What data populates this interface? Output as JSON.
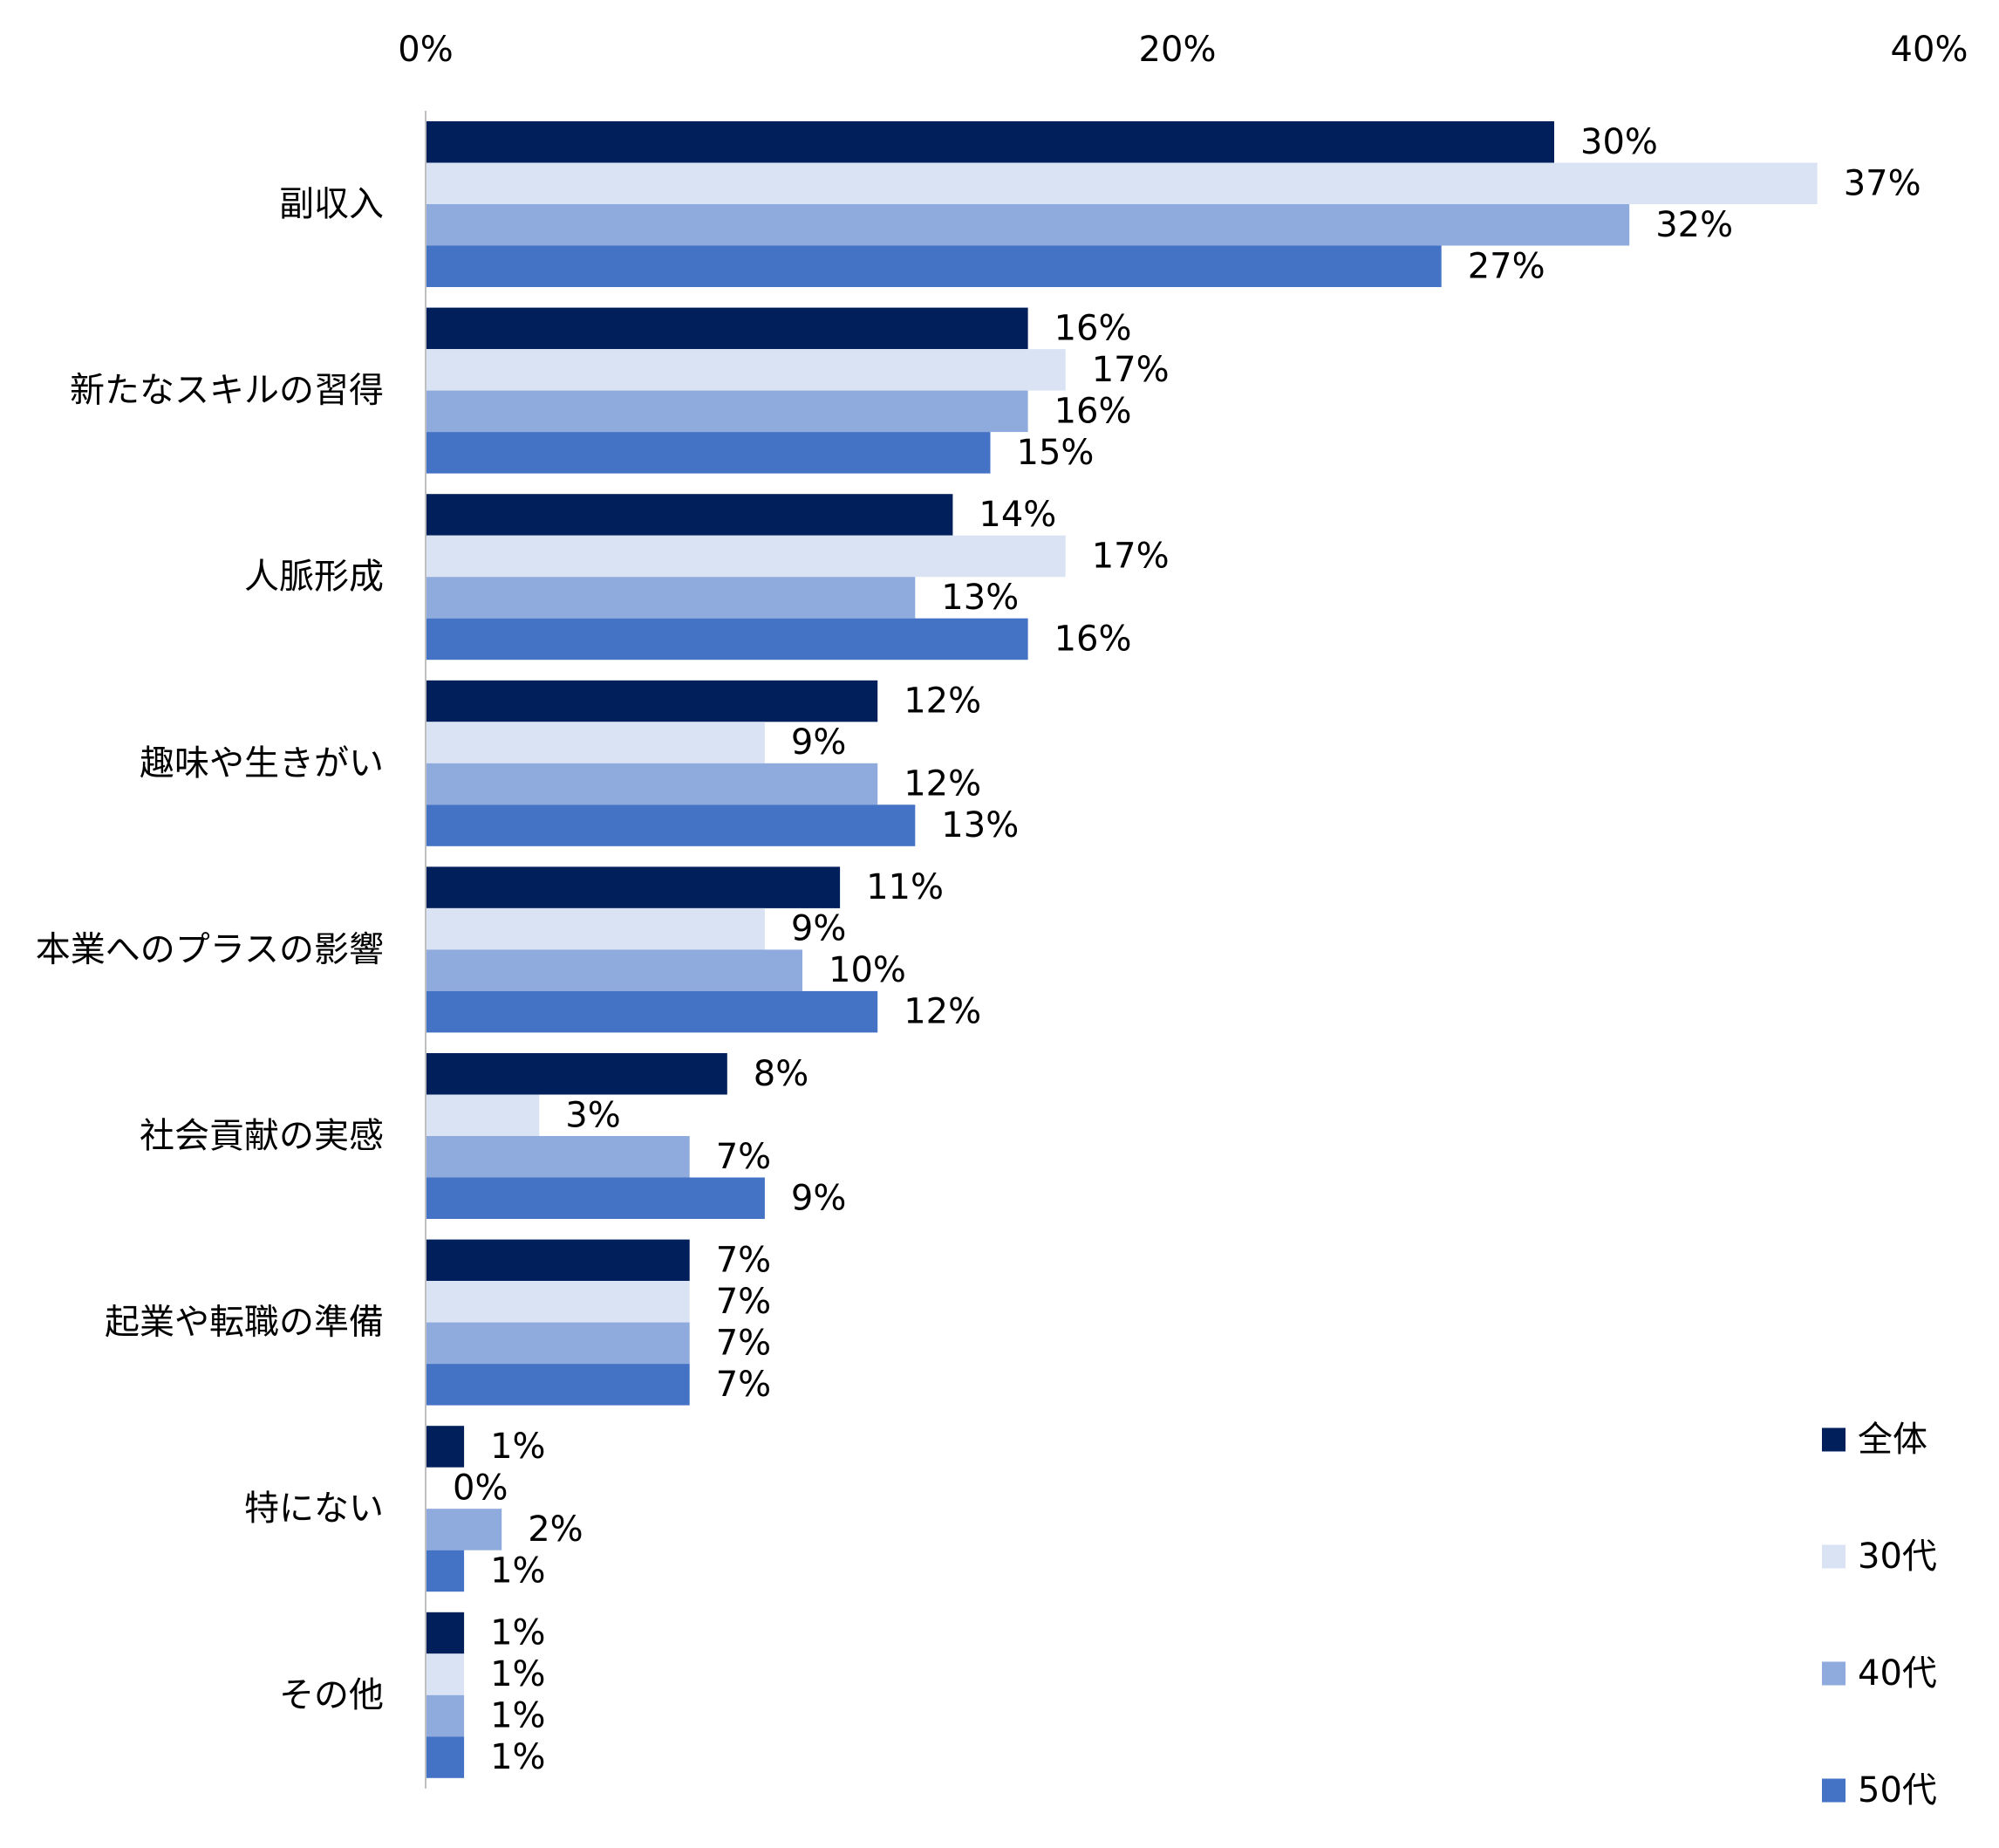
{
  "chart_data": {
    "type": "bar",
    "orientation": "horizontal",
    "categories": [
      "副収入",
      "新たなスキルの習得",
      "人脈形成",
      "趣味や生きがい",
      "本業へのプラスの影響",
      "社会貢献の実感",
      "起業や転職の準備",
      "特にない",
      "その他"
    ],
    "series": [
      {
        "name": "全体",
        "color": "#001f5b",
        "values": [
          30,
          16,
          14,
          12,
          11,
          8,
          7,
          1,
          1
        ],
        "labels": [
          "30%",
          "16%",
          "14%",
          "12%",
          "11%",
          "8%",
          "7%",
          "1%",
          "1%"
        ]
      },
      {
        "name": "30代",
        "color": "#dae3f3",
        "values": [
          37,
          17,
          17,
          9,
          9,
          3,
          7,
          0,
          1
        ],
        "labels": [
          "37%",
          "17%",
          "17%",
          "9%",
          "9%",
          "3%",
          "7%",
          "0%",
          "1%"
        ]
      },
      {
        "name": "40代",
        "color": "#8faadc",
        "values": [
          32,
          16,
          13,
          12,
          10,
          7,
          7,
          2,
          1
        ],
        "labels": [
          "32%",
          "16%",
          "13%",
          "12%",
          "10%",
          "7%",
          "7%",
          "2%",
          "1%"
        ]
      },
      {
        "name": "50代",
        "color": "#4472c4",
        "values": [
          27,
          15,
          16,
          13,
          12,
          9,
          7,
          1,
          1
        ],
        "labels": [
          "27%",
          "15%",
          "16%",
          "13%",
          "12%",
          "9%",
          "7%",
          "1%",
          "1%"
        ]
      }
    ],
    "xlim": [
      0,
      40
    ],
    "x_ticks": [
      0,
      20,
      40
    ],
    "x_tick_labels": [
      "0%",
      "20%",
      "40%"
    ],
    "axis_position": "top",
    "grid": false,
    "legend_position": "bottom-right",
    "axis_color": "#bfbfbf"
  }
}
